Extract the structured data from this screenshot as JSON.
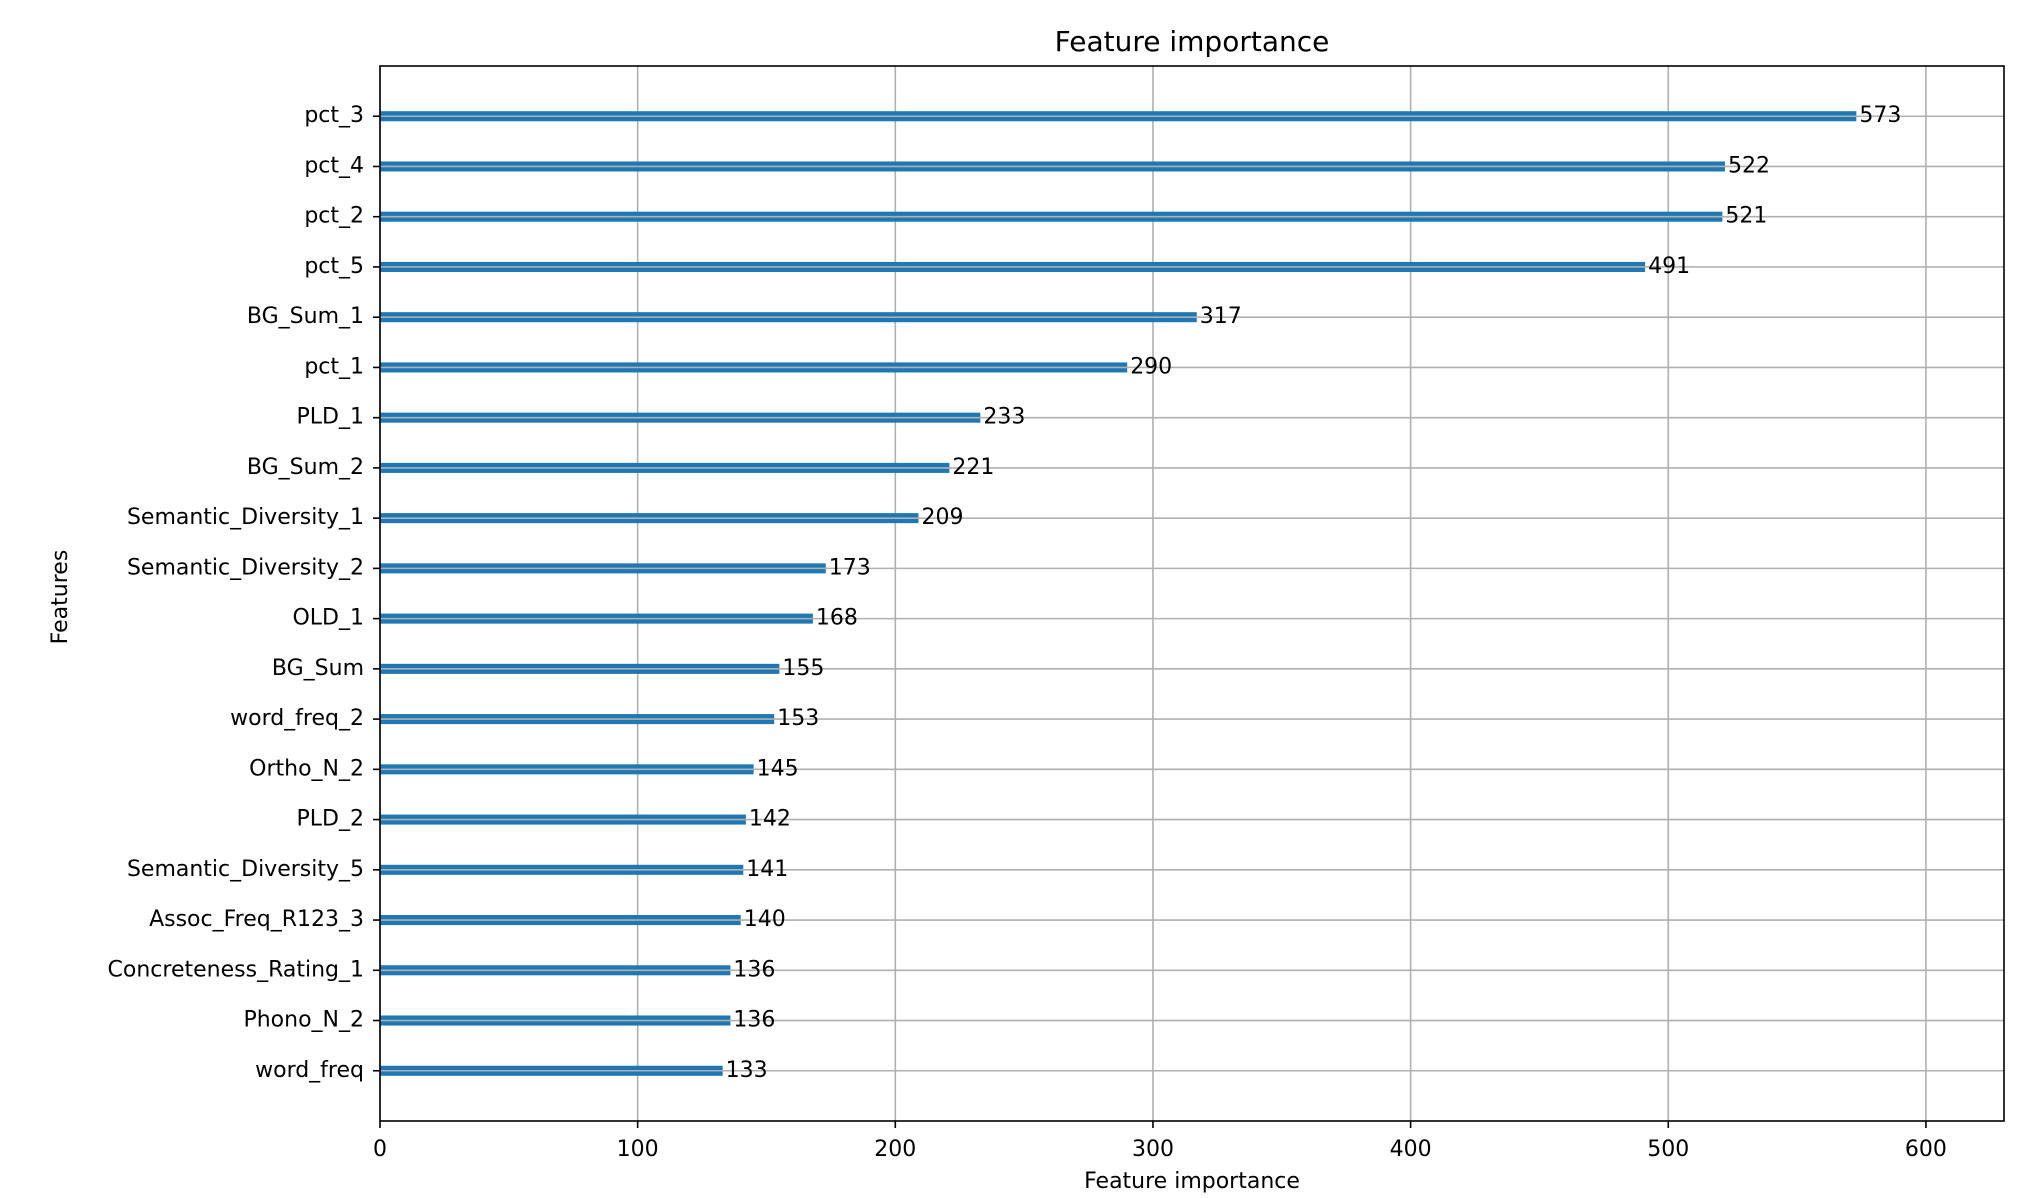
{
  "chart_data": {
    "type": "barh",
    "title": "Feature importance",
    "x_label": "Feature importance",
    "y_label": "Features",
    "categories": [
      "pct_3",
      "pct_4",
      "pct_2",
      "pct_5",
      "BG_Sum_1",
      "pct_1",
      "PLD_1",
      "BG_Sum_2",
      "Semantic_Diversity_1",
      "Semantic_Diversity_2",
      "OLD_1",
      "BG_Sum",
      "word_freq_2",
      "Ortho_N_2",
      "PLD_2",
      "Semantic_Diversity_5",
      "Assoc_Freq_R123_3",
      "Concreteness_Rating_1",
      "Phono_N_2",
      "word_freq"
    ],
    "values": [
      573,
      522,
      521,
      491,
      317,
      290,
      233,
      221,
      209,
      173,
      168,
      155,
      153,
      145,
      142,
      141,
      140,
      136,
      136,
      133
    ],
    "color": "#1f77b4",
    "xlim": [
      0,
      630.3
    ],
    "xticks": [
      0,
      100,
      200,
      300,
      400,
      500,
      600
    ],
    "grid": true
  }
}
